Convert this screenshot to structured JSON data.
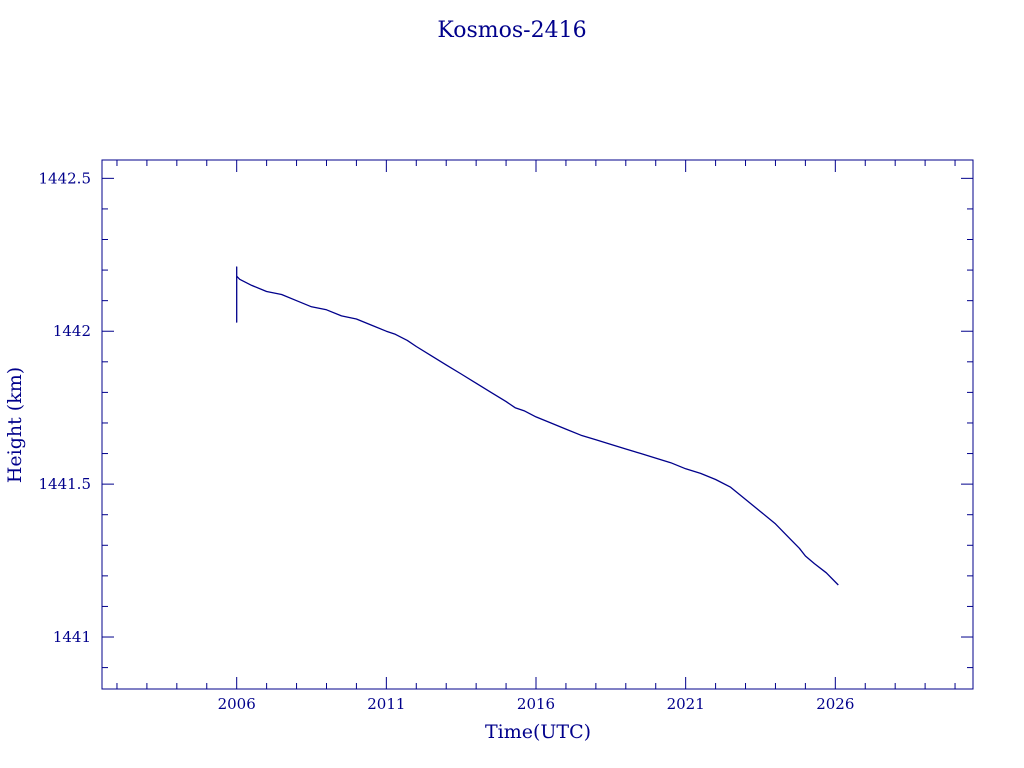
{
  "chart_data": {
    "type": "line",
    "title": "Kosmos-2416",
    "xlabel": "Time(UTC)",
    "ylabel": "Height (km)",
    "xlim": [
      2001.5,
      2030.6
    ],
    "ylim": [
      1440.83,
      1442.56
    ],
    "x_ticks": [
      2006,
      2011,
      2016,
      2021,
      2026
    ],
    "x_tick_labels": [
      "2006",
      "2011",
      "2016",
      "2021",
      "2026"
    ],
    "x_minor_step": 1,
    "y_ticks": [
      1441,
      1441.5,
      1442,
      1442.5
    ],
    "y_tick_labels": [
      "1441",
      "1441.5",
      "1442",
      "1442.5"
    ],
    "y_minor_step": 0.1,
    "grid": false,
    "color": "#00008b",
    "series": [
      {
        "x": [
          2006.0,
          2006.0,
          2006.0,
          2006.0,
          2006.1,
          2006.5,
          2007.0,
          2007.5,
          2008.0,
          2008.5,
          2009.0,
          2009.5,
          2010.0,
          2010.5,
          2011.0,
          2011.3,
          2011.7,
          2012.0,
          2012.5,
          2013.0,
          2013.5,
          2014.0,
          2014.5,
          2015.0,
          2015.3,
          2015.6,
          2016.0,
          2016.5,
          2017.0,
          2017.5,
          2018.0,
          2018.5,
          2019.0,
          2019.5,
          2020.0,
          2020.5,
          2021.0,
          2021.5,
          2022.0,
          2022.5,
          2023.0,
          2023.5,
          2024.0,
          2024.5,
          2024.8,
          2025.0,
          2025.3,
          2025.7,
          2026.1
        ],
        "y": [
          1442.16,
          1442.21,
          1442.03,
          1442.18,
          1442.17,
          1442.15,
          1442.13,
          1442.12,
          1442.1,
          1442.08,
          1442.07,
          1442.05,
          1442.04,
          1442.02,
          1442.0,
          1441.99,
          1441.97,
          1441.95,
          1441.92,
          1441.89,
          1441.86,
          1441.83,
          1441.8,
          1441.77,
          1441.75,
          1441.74,
          1441.72,
          1441.7,
          1441.68,
          1441.66,
          1441.645,
          1441.63,
          1441.615,
          1441.6,
          1441.585,
          1441.57,
          1441.55,
          1441.535,
          1441.515,
          1441.49,
          1441.45,
          1441.41,
          1441.37,
          1441.32,
          1441.29,
          1441.265,
          1441.24,
          1441.21,
          1441.17
        ]
      }
    ]
  }
}
